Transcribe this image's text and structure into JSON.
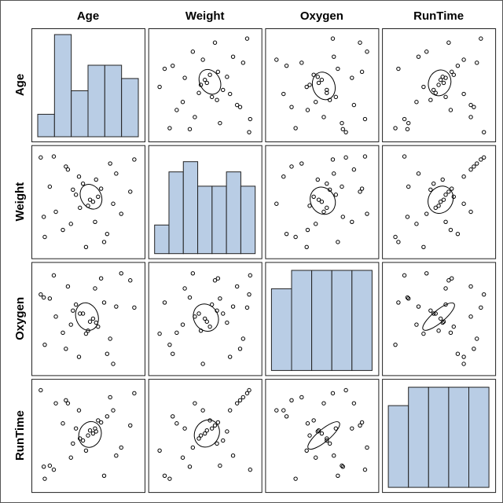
{
  "chart_data": {
    "type": "scatter",
    "variables": [
      "Age",
      "Weight",
      "Oxygen",
      "RunTime"
    ],
    "diagonal": "histogram",
    "off_diagonal": "scatter with confidence ellipse",
    "colors": {
      "bar_fill": "#b9cde5",
      "outline": "#000000"
    },
    "xlim": [
      0,
      1
    ],
    "ylim": [
      0,
      1
    ],
    "observations": [
      {
        "Age": 0.06,
        "Weight": 0.35,
        "Oxygen": 0.71,
        "RunTime": 0.19
      },
      {
        "Age": 0.03,
        "Weight": 0.94,
        "Oxygen": 0.74,
        "RunTime": 0.95
      },
      {
        "Age": 0.3,
        "Weight": 0.82,
        "Oxygen": 0.82,
        "RunTime": 0.82
      },
      {
        "Age": 0.96,
        "Weight": 0.92,
        "Oxygen": 0.61,
        "RunTime": 0.92
      },
      {
        "Age": 0.69,
        "Weight": 0.18,
        "Oxygen": 0.15,
        "RunTime": 0.69
      },
      {
        "Age": 0.48,
        "Weight": 0.05,
        "Oxygen": 0.35,
        "RunTime": 0.35
      },
      {
        "Age": 0.92,
        "Weight": 0.6,
        "Oxygen": 0.88,
        "RunTime": 0.6
      },
      {
        "Age": 0.18,
        "Weight": 0.4,
        "Oxygen": 0.52,
        "RunTime": 0.82
      },
      {
        "Age": 0.75,
        "Weight": 0.48,
        "Oxygen": 0.05,
        "RunTime": 0.75
      },
      {
        "Age": 0.58,
        "Weight": 0.72,
        "Oxygen": 0.46,
        "RunTime": 0.54
      },
      {
        "Age": 0.38,
        "Weight": 0.57,
        "Oxygen": 0.64,
        "RunTime": 0.57
      },
      {
        "Age": 0.5,
        "Weight": 0.46,
        "Oxygen": 0.38,
        "RunTime": 0.5
      },
      {
        "Age": 0.16,
        "Weight": 0.95,
        "Oxygen": 0.93,
        "RunTime": 0.16
      },
      {
        "Age": 0.45,
        "Weight": 0.68,
        "Oxygen": 0.55,
        "RunTime": 0.45
      },
      {
        "Age": 0.57,
        "Weight": 0.3,
        "Oxygen": 0.8,
        "RunTime": 0.57
      },
      {
        "Age": 0.07,
        "Weight": 0.15,
        "Oxygen": 0.24,
        "RunTime": 0.07
      },
      {
        "Age": 0.83,
        "Weight": 0.38,
        "Oxygen": 0.95,
        "RunTime": 0.38
      },
      {
        "Age": 0.66,
        "Weight": 0.1,
        "Oxygen": 0.66,
        "RunTime": 0.1
      },
      {
        "Age": 0.28,
        "Weight": 0.85,
        "Oxygen": 0.2,
        "RunTime": 0.85
      },
      {
        "Age": 0.63,
        "Weight": 0.63,
        "Oxygen": 0.9,
        "RunTime": 0.63
      },
      {
        "Age": 0.72,
        "Weight": 0.88,
        "Oxygen": 0.3,
        "RunTime": 0.88
      },
      {
        "Age": 0.33,
        "Weight": 0.28,
        "Oxygen": 0.44,
        "RunTime": 0.28
      },
      {
        "Age": 0.41,
        "Weight": 0.75,
        "Oxygen": 0.12,
        "RunTime": 0.75
      },
      {
        "Age": 0.52,
        "Weight": 0.52,
        "Oxygen": 0.47,
        "RunTime": 0.55
      },
      {
        "Age": 0.35,
        "Weight": 0.62,
        "Oxygen": 0.58,
        "RunTime": 0.42
      },
      {
        "Age": 0.6,
        "Weight": 0.55,
        "Oxygen": 0.42,
        "RunTime": 0.65
      },
      {
        "Age": 0.42,
        "Weight": 0.44,
        "Oxygen": 0.55,
        "RunTime": 0.47
      },
      {
        "Age": 0.55,
        "Weight": 0.5,
        "Oxygen": 0.5,
        "RunTime": 0.52
      },
      {
        "Age": 0.25,
        "Weight": 0.22,
        "Oxygen": 0.36,
        "RunTime": 0.62
      },
      {
        "Age": 0.78,
        "Weight": 0.78,
        "Oxygen": 0.62,
        "RunTime": 0.3
      },
      {
        "Age": 0.12,
        "Weight": 0.65,
        "Oxygen": 0.7,
        "RunTime": 0.2
      }
    ],
    "ellipses": {
      "Age|Weight": {
        "cx": 0.53,
        "cy": 0.55,
        "rx": 0.1,
        "ry": 0.13,
        "angle": -30
      },
      "Age|Oxygen": {
        "cx": 0.49,
        "cy": 0.52,
        "rx": 0.11,
        "ry": 0.14,
        "angle": -20
      },
      "Age|RunTime": {
        "cx": 0.52,
        "cy": 0.51,
        "rx": 0.11,
        "ry": 0.13,
        "angle": 20
      },
      "Weight|Oxygen": {
        "cx": 0.51,
        "cy": 0.51,
        "rx": 0.12,
        "ry": 0.14,
        "angle": -30
      },
      "Weight|RunTime": {
        "cx": 0.52,
        "cy": 0.52,
        "rx": 0.12,
        "ry": 0.14,
        "angle": 30
      },
      "Oxygen|RunTime": {
        "cx": 0.52,
        "cy": 0.5,
        "rx": 0.2,
        "ry": 0.06,
        "angle": -40
      }
    },
    "histograms": {
      "Age": [
        0.22,
        1.0,
        0.45,
        0.7,
        0.7,
        0.57
      ],
      "Weight": [
        0.28,
        0.8,
        0.9,
        0.66,
        0.66,
        0.8,
        0.66
      ],
      "Oxygen": [
        0.8,
        0.98,
        0.98,
        0.98,
        0.98
      ],
      "RunTime": [
        0.8,
        0.98,
        0.98,
        0.98,
        0.98
      ]
    }
  }
}
